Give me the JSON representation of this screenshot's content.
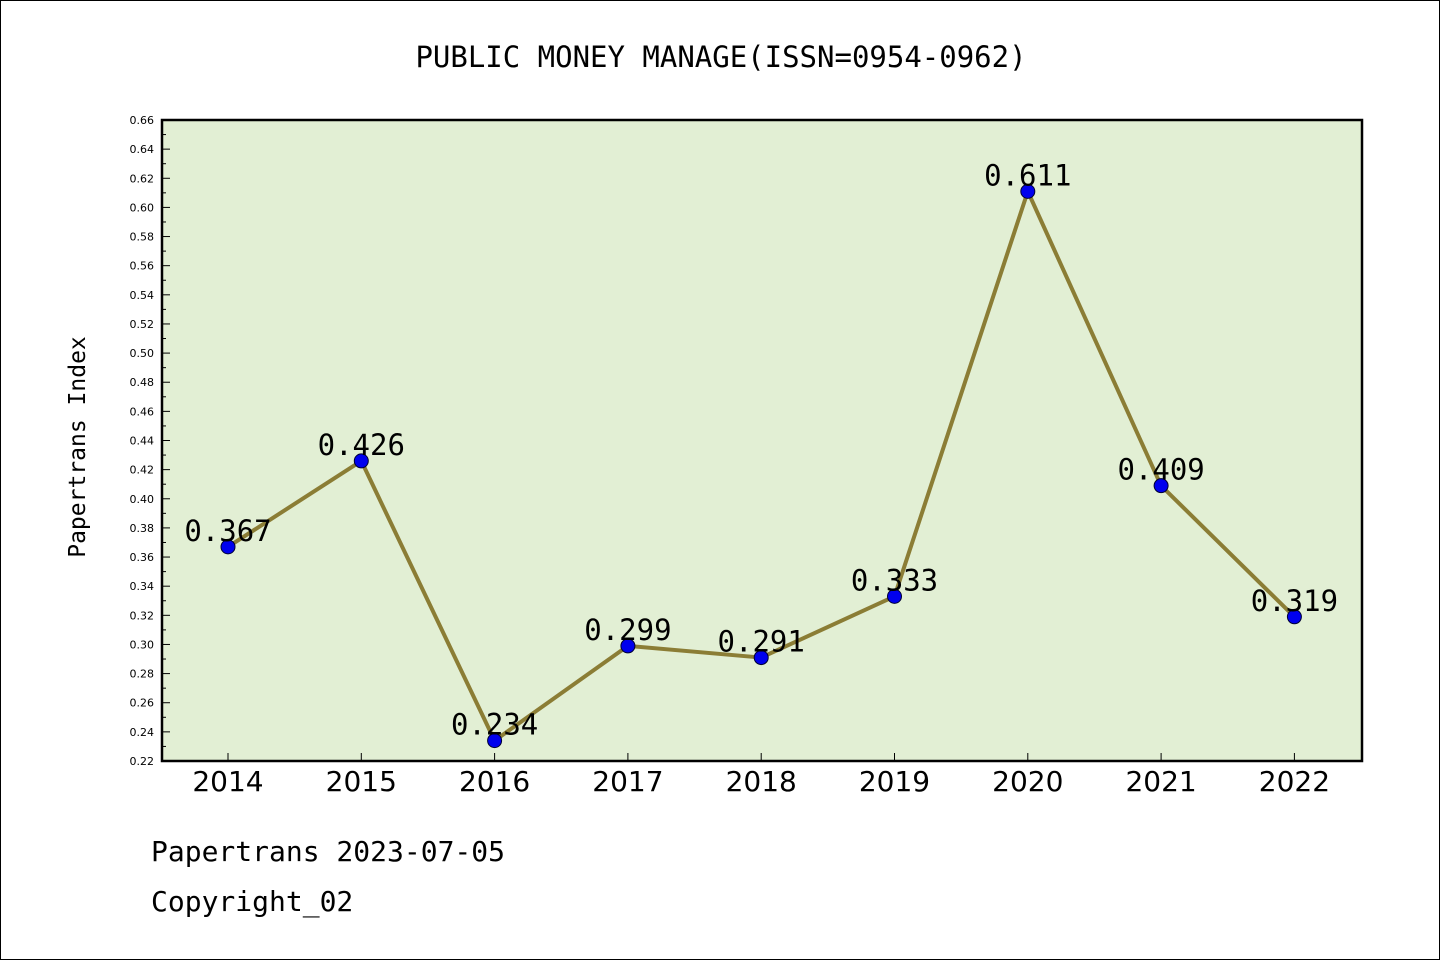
{
  "chart_data": {
    "type": "line",
    "title": "PUBLIC MONEY MANAGE(ISSN=0954-0962)",
    "xlabel": "",
    "ylabel": "Papertrans Index",
    "categories": [
      "2014",
      "2015",
      "2016",
      "2017",
      "2018",
      "2019",
      "2020",
      "2021",
      "2022"
    ],
    "values": [
      0.367,
      0.426,
      0.234,
      0.299,
      0.291,
      0.333,
      0.611,
      0.409,
      0.319
    ],
    "data_labels": [
      "0.367",
      "0.426",
      "0.234",
      "0.299",
      "0.291",
      "0.333",
      "0.611",
      "0.409",
      "0.319"
    ],
    "ylim": [
      0.22,
      0.66
    ],
    "yticks": [
      "0.22",
      "0.24",
      "0.26",
      "0.28",
      "0.30",
      "0.32",
      "0.34",
      "0.36",
      "0.38",
      "0.40",
      "0.42",
      "0.44",
      "0.46",
      "0.48",
      "0.50",
      "0.52",
      "0.54",
      "0.56",
      "0.58",
      "0.60",
      "0.62",
      "0.64",
      "0.66"
    ],
    "grid": false,
    "legend": "none",
    "colors": {
      "plot_background": "#e2efd4",
      "line": "#8b7d35",
      "marker": "#0000ee"
    }
  },
  "footer": {
    "date_line": "Papertrans 2023-07-05",
    "copyright_line": "Copyright_02"
  }
}
